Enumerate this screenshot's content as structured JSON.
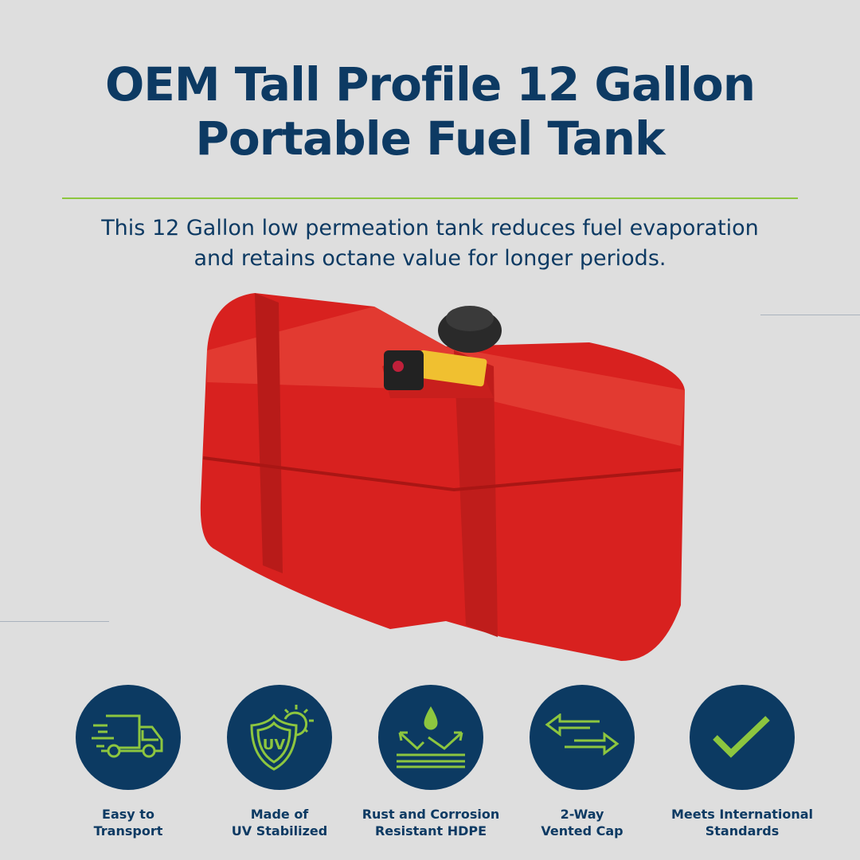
{
  "header": {
    "title_line1": "OEM Tall Profile 12 Gallon",
    "title_line2": "Portable Fuel Tank",
    "subtitle_line1": "This 12 Gallon low permeation tank reduces fuel evaporation",
    "subtitle_line2": "and retains octane value for longer periods."
  },
  "colors": {
    "navy": "#0c3a62",
    "green": "#8dc63f",
    "background": "#dedede",
    "tank_red": "#d8211f"
  },
  "features": [
    {
      "icon": "truck-icon",
      "line1": "Easy to",
      "line2": "Transport"
    },
    {
      "icon": "uv-shield-icon",
      "line1": "Made of",
      "line2": "UV Stabilized"
    },
    {
      "icon": "water-resistant-icon",
      "line1": "Rust and Corrosion",
      "line2": "Resistant HDPE"
    },
    {
      "icon": "two-way-arrows-icon",
      "line1": "2-Way",
      "line2": "Vented Cap"
    },
    {
      "icon": "checkmark-icon",
      "line1": "Meets International",
      "line2": "Standards"
    }
  ]
}
